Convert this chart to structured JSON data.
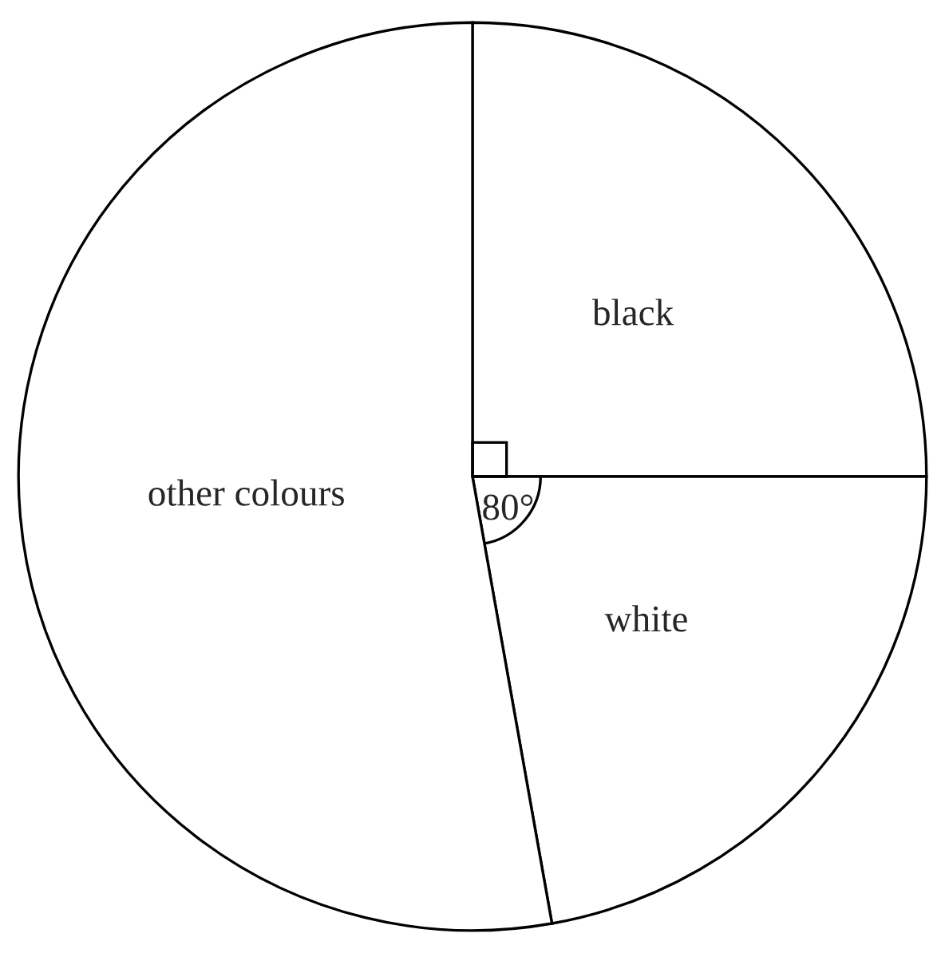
{
  "chart_data": {
    "type": "pie",
    "categories": [
      "black",
      "white",
      "other colours"
    ],
    "values": [
      25,
      22.2,
      52.8
    ],
    "colors": [
      "#ffffff",
      "#ffffff",
      "#ffffff"
    ],
    "annotations": [
      "80°"
    ],
    "legend": false
  }
}
